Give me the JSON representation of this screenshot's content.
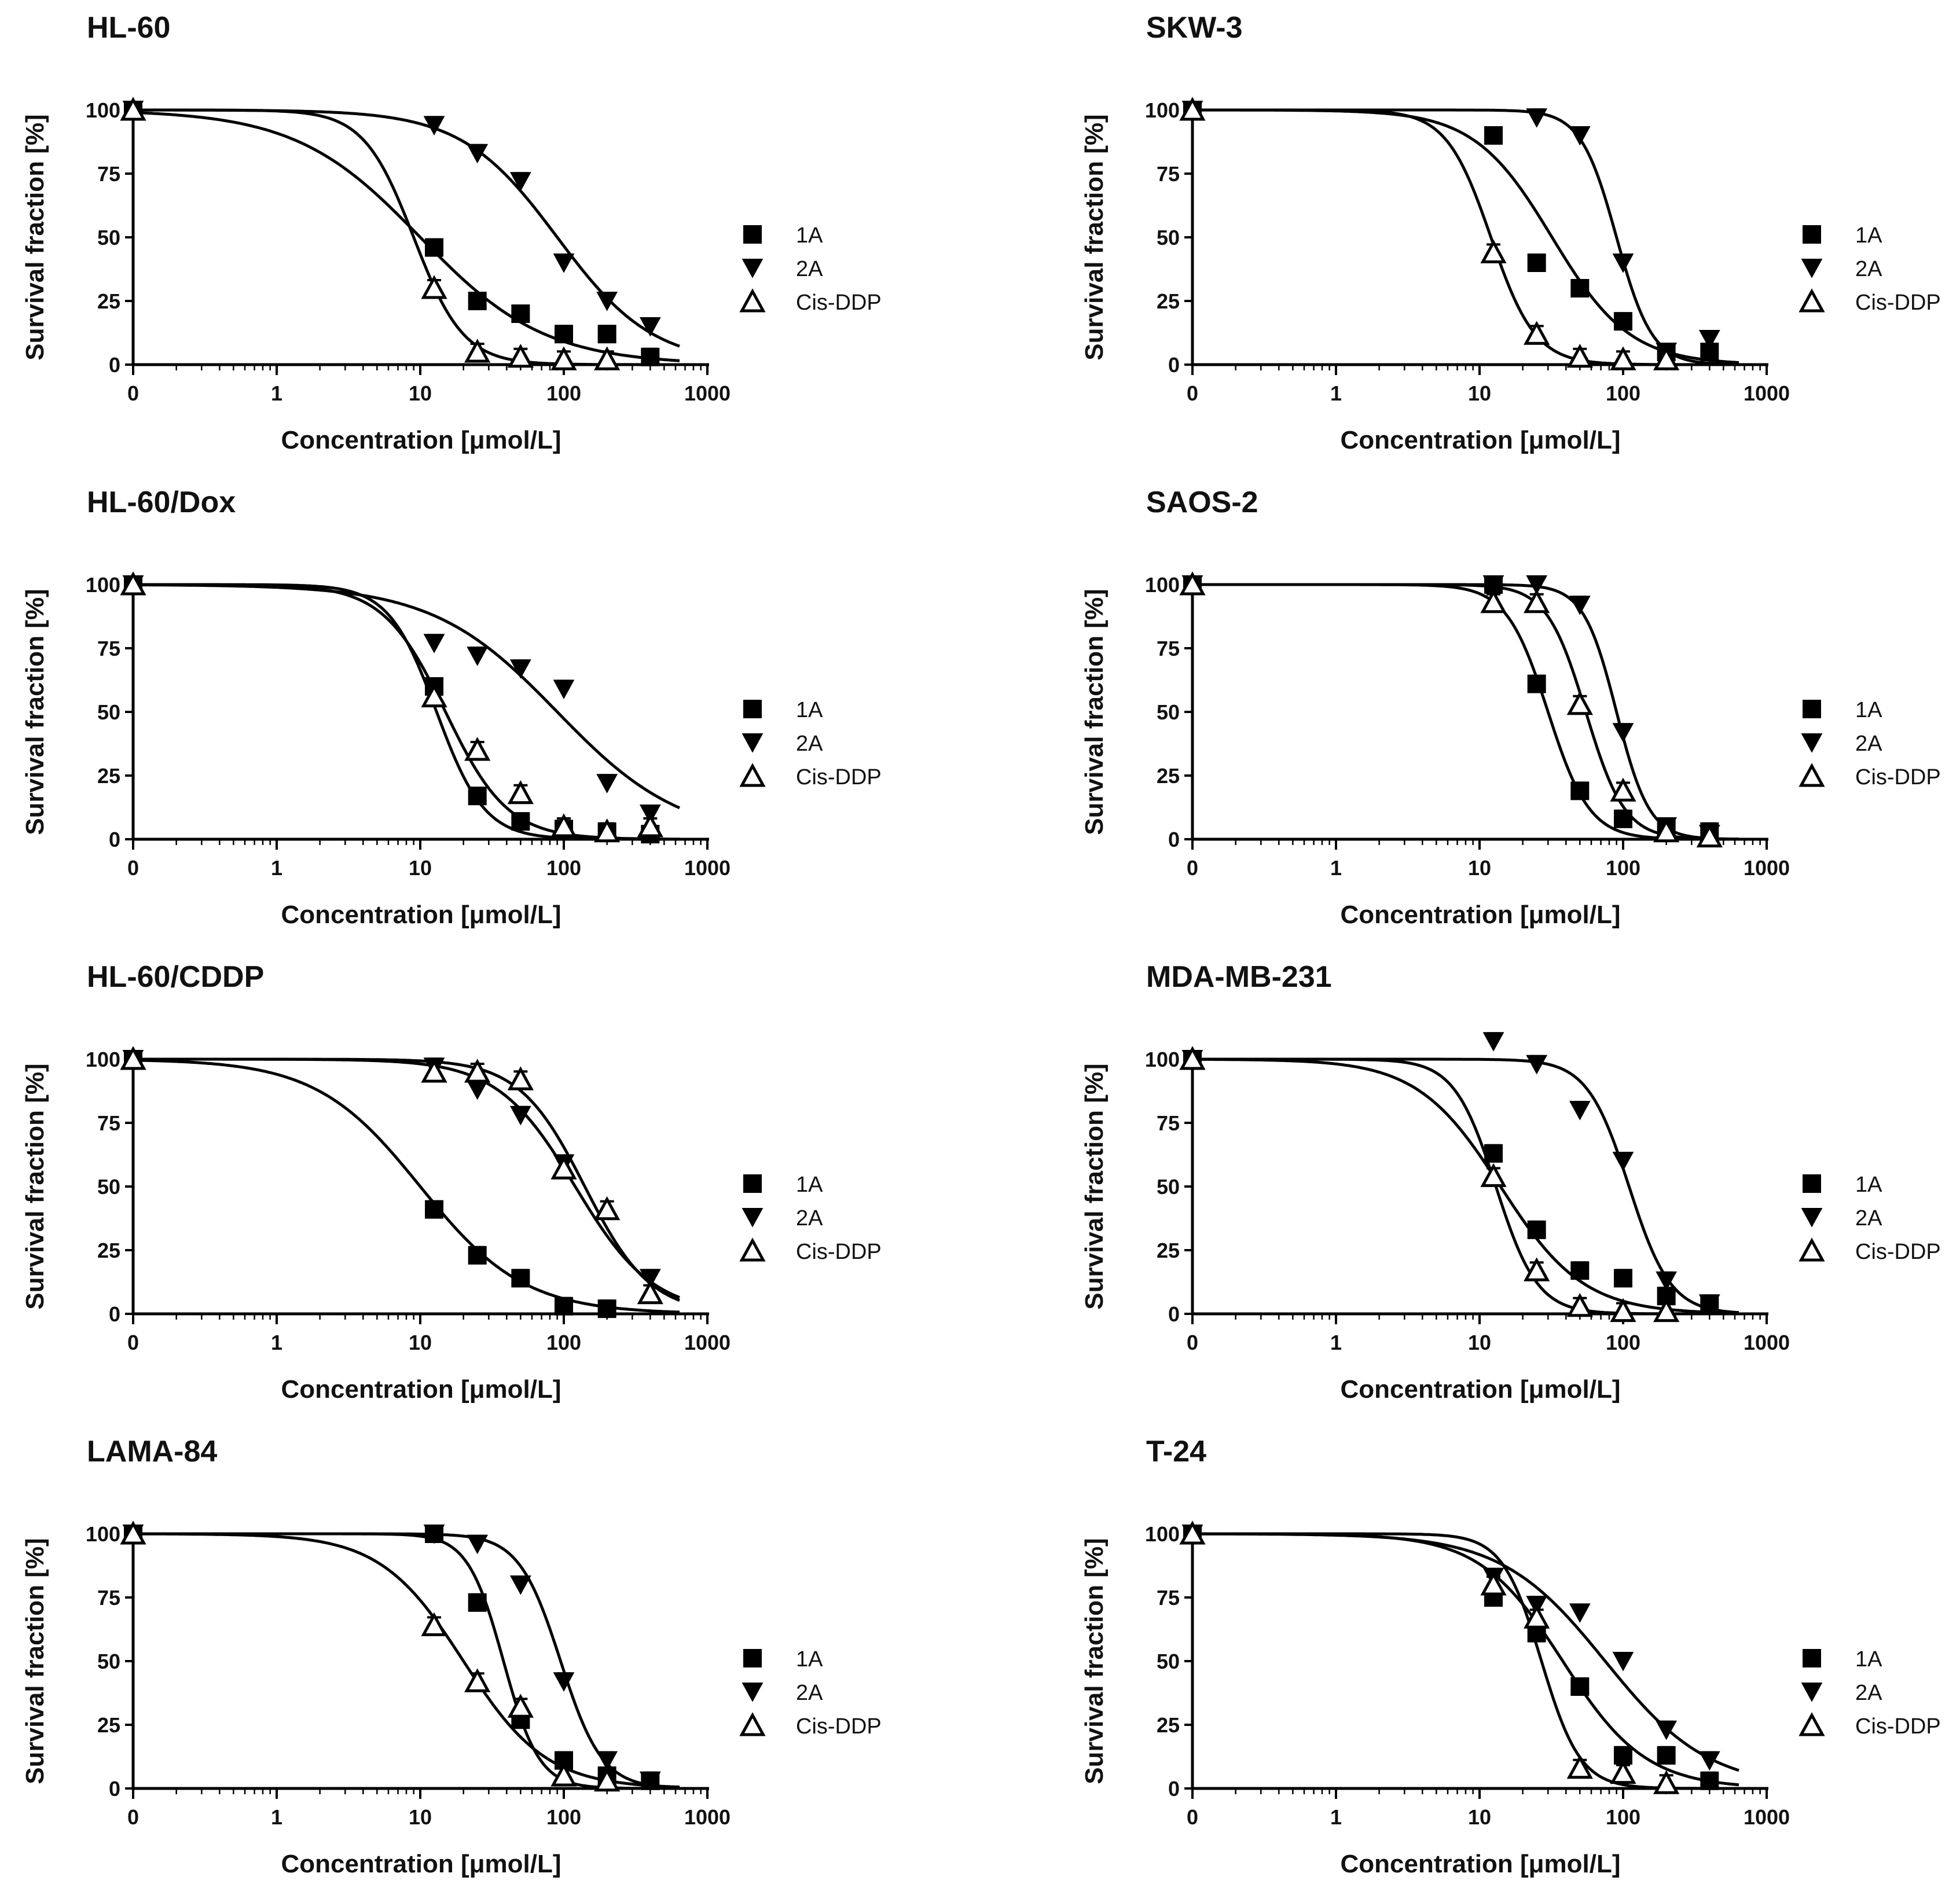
{
  "chart_data": [
    {
      "type": "line",
      "title": "HL-60",
      "xlabel": "Concentration [μmol/L]",
      "ylabel": "Survival fraction [%]",
      "x_ticks": [
        "0",
        "1",
        "10",
        "100",
        "1000"
      ],
      "y_ticks": [
        "0",
        "25",
        "50",
        "75",
        "100"
      ],
      "xscale": "log",
      "xlim": [
        0,
        1000
      ],
      "ylim": [
        0,
        100
      ],
      "legend": [
        "1A",
        "2A",
        "Cis-DDP"
      ],
      "series": [
        {
          "name": "1A",
          "marker": "square",
          "x": [
            0,
            12.5,
            25,
            50,
            100,
            200,
            400
          ],
          "y": [
            100,
            46,
            25,
            20,
            12,
            12,
            3
          ],
          "fit": {
            "ic50": 10,
            "hill": 1.0
          }
        },
        {
          "name": "2A",
          "marker": "triangle-down",
          "x": [
            0,
            12.5,
            25,
            50,
            100,
            200,
            400
          ],
          "y": [
            100,
            94,
            83,
            72,
            40,
            25,
            15
          ],
          "fit": {
            "ic50": 90,
            "hill": 1.3
          }
        },
        {
          "name": "Cis-DDP",
          "marker": "triangle-up-open",
          "x": [
            0,
            12.5,
            25,
            50,
            100,
            200
          ],
          "y": [
            100,
            30,
            5,
            3,
            2,
            2
          ],
          "fit": {
            "ic50": 9,
            "hill": 2.5
          }
        }
      ]
    },
    {
      "type": "line",
      "title": "SKW-3",
      "xlabel": "Concentration [μmol/L]",
      "ylabel": "Survival fraction [%]",
      "x_ticks": [
        "0",
        "1",
        "10",
        "100",
        "1000"
      ],
      "y_ticks": [
        "0",
        "25",
        "50",
        "75",
        "100"
      ],
      "xscale": "log",
      "xlim": [
        0,
        1000
      ],
      "ylim": [
        0,
        100
      ],
      "legend": [
        "1A",
        "2A",
        "Cis-DDP"
      ],
      "series": [
        {
          "name": "1A",
          "marker": "square",
          "x": [
            0,
            12.5,
            25,
            50,
            100,
            200,
            400
          ],
          "y": [
            100,
            90,
            40,
            30,
            17,
            5,
            5
          ],
          "fit": {
            "ic50": 32,
            "hill": 1.6
          }
        },
        {
          "name": "2A",
          "marker": "triangle-down",
          "x": [
            0,
            25,
            50,
            100,
            200,
            400
          ],
          "y": [
            100,
            97,
            90,
            40,
            5,
            10
          ],
          "fit": {
            "ic50": 90,
            "hill": 3.5
          }
        },
        {
          "name": "Cis-DDP",
          "marker": "triangle-up-open",
          "x": [
            0,
            12.5,
            25,
            50,
            100,
            200
          ],
          "y": [
            100,
            44,
            12,
            3,
            2,
            2
          ],
          "fit": {
            "ic50": 12,
            "hill": 2.8
          }
        }
      ]
    },
    {
      "type": "line",
      "title": "HL-60/Dox",
      "xlabel": "Concentration [μmol/L]",
      "ylabel": "Survival fraction [%]",
      "x_ticks": [
        "0",
        "1",
        "10",
        "100",
        "1000"
      ],
      "y_ticks": [
        "0",
        "25",
        "50",
        "75",
        "100"
      ],
      "xscale": "log",
      "xlim": [
        0,
        1000
      ],
      "ylim": [
        0,
        100
      ],
      "legend": [
        "1A",
        "2A",
        "Cis-DDP"
      ],
      "series": [
        {
          "name": "1A",
          "marker": "square",
          "x": [
            0,
            12.5,
            25,
            50,
            100,
            200,
            400
          ],
          "y": [
            100,
            60,
            17,
            7,
            4,
            3,
            2
          ],
          "fit": {
            "ic50": 13,
            "hill": 2.6
          }
        },
        {
          "name": "2A",
          "marker": "triangle-down",
          "x": [
            0,
            12.5,
            25,
            50,
            100,
            200,
            400
          ],
          "y": [
            100,
            77,
            72,
            67,
            59,
            22,
            10
          ],
          "fit": {
            "ic50": 90,
            "hill": 1.0
          }
        },
        {
          "name": "Cis-DDP",
          "marker": "triangle-up-open",
          "x": [
            0,
            12.5,
            25,
            50,
            100,
            200,
            400
          ],
          "y": [
            100,
            56,
            35,
            18,
            5,
            3,
            5
          ],
          "fit": {
            "ic50": 15,
            "hill": 2.0
          }
        }
      ]
    },
    {
      "type": "line",
      "title": "SAOS-2",
      "xlabel": "Concentration [μmol/L]",
      "ylabel": "Survival fraction [%]",
      "x_ticks": [
        "0",
        "1",
        "10",
        "100",
        "1000"
      ],
      "y_ticks": [
        "0",
        "25",
        "50",
        "75",
        "100"
      ],
      "xscale": "log",
      "xlim": [
        0,
        1000
      ],
      "ylim": [
        0,
        100
      ],
      "legend": [
        "1A",
        "2A",
        "Cis-DDP"
      ],
      "series": [
        {
          "name": "1A",
          "marker": "square",
          "x": [
            0,
            12.5,
            25,
            50,
            100,
            200,
            400
          ],
          "y": [
            100,
            100,
            61,
            19,
            8,
            4,
            3
          ],
          "fit": {
            "ic50": 30,
            "hill": 3.0
          }
        },
        {
          "name": "2A",
          "marker": "triangle-down",
          "x": [
            0,
            12.5,
            25,
            50,
            100,
            200,
            400
          ],
          "y": [
            100,
            100,
            100,
            92,
            42,
            5,
            2
          ],
          "fit": {
            "ic50": 90,
            "hill": 3.8
          }
        },
        {
          "name": "Cis-DDP",
          "marker": "triangle-up-open",
          "x": [
            0,
            12.5,
            25,
            50,
            100,
            200,
            400
          ],
          "y": [
            100,
            93,
            93,
            53,
            19,
            3,
            1
          ],
          "fit": {
            "ic50": 55,
            "hill": 3.2
          }
        }
      ]
    },
    {
      "type": "line",
      "title": "HL-60/CDDP",
      "xlabel": "Concentration [μmol/L]",
      "ylabel": "Survival fraction [%]",
      "x_ticks": [
        "0",
        "1",
        "10",
        "100",
        "1000"
      ],
      "y_ticks": [
        "0",
        "25",
        "50",
        "75",
        "100"
      ],
      "xscale": "log",
      "xlim": [
        0,
        1000
      ],
      "ylim": [
        0,
        100
      ],
      "legend": [
        "1A",
        "2A",
        "Cis-DDP"
      ],
      "series": [
        {
          "name": "1A",
          "marker": "square",
          "x": [
            0,
            12.5,
            25,
            50,
            100,
            200
          ],
          "y": [
            100,
            41,
            23,
            14,
            3,
            2
          ],
          "fit": {
            "ic50": 10,
            "hill": 1.2
          }
        },
        {
          "name": "2A",
          "marker": "triangle-down",
          "x": [
            0,
            12.5,
            25,
            50,
            100,
            400
          ],
          "y": [
            100,
            97,
            88,
            78,
            59,
            14
          ],
          "fit": {
            "ic50": 120,
            "hill": 1.6
          }
        },
        {
          "name": "Cis-DDP",
          "marker": "triangle-up-open",
          "x": [
            0,
            12.5,
            25,
            50,
            100,
            200,
            400
          ],
          "y": [
            100,
            95,
            95,
            92,
            57,
            41,
            8
          ],
          "fit": {
            "ic50": 140,
            "hill": 1.9
          }
        }
      ]
    },
    {
      "type": "line",
      "title": "MDA-MB-231",
      "xlabel": "Concentration [μmol/L]",
      "ylabel": "Survival fraction [%]",
      "x_ticks": [
        "0",
        "1",
        "10",
        "100",
        "1000"
      ],
      "y_ticks": [
        "0",
        "25",
        "50",
        "75",
        "100"
      ],
      "xscale": "log",
      "xlim": [
        0,
        1000
      ],
      "ylim": [
        0,
        100
      ],
      "legend": [
        "1A",
        "2A",
        "Cis-DDP"
      ],
      "series": [
        {
          "name": "1A",
          "marker": "square",
          "x": [
            0,
            12.5,
            25,
            50,
            100,
            200,
            400
          ],
          "y": [
            100,
            63,
            33,
            17,
            14,
            7,
            4
          ],
          "fit": {
            "ic50": 14,
            "hill": 1.5
          }
        },
        {
          "name": "2A",
          "marker": "triangle-down",
          "x": [
            0,
            12.5,
            25,
            50,
            100,
            200,
            400
          ],
          "y": [
            100,
            107,
            98,
            80,
            60,
            13,
            4
          ],
          "fit": {
            "ic50": 110,
            "hill": 3.0
          }
        },
        {
          "name": "Cis-DDP",
          "marker": "triangle-up-open",
          "x": [
            0,
            12.5,
            25,
            50,
            100,
            200
          ],
          "y": [
            100,
            54,
            17,
            3,
            1,
            1
          ],
          "fit": {
            "ic50": 13,
            "hill": 3.0
          }
        }
      ]
    },
    {
      "type": "line",
      "title": "LAMA-84",
      "xlabel": "Concentration [μmol/L]",
      "ylabel": "Survival fraction [%]",
      "x_ticks": [
        "0",
        "1",
        "10",
        "100",
        "1000"
      ],
      "y_ticks": [
        "0",
        "25",
        "50",
        "75",
        "100"
      ],
      "xscale": "log",
      "xlim": [
        0,
        1000
      ],
      "ylim": [
        0,
        100
      ],
      "legend": [
        "1A",
        "2A",
        "Cis-DDP"
      ],
      "series": [
        {
          "name": "1A",
          "marker": "square",
          "x": [
            0,
            12.5,
            25,
            50,
            100,
            200,
            400
          ],
          "y": [
            100,
            100,
            73,
            27,
            11,
            5,
            3
          ],
          "fit": {
            "ic50": 38,
            "hill": 3.5
          }
        },
        {
          "name": "2A",
          "marker": "triangle-down",
          "x": [
            0,
            12.5,
            25,
            50,
            100,
            200,
            400
          ],
          "y": [
            100,
            100,
            96,
            80,
            42,
            11,
            3
          ],
          "fit": {
            "ic50": 95,
            "hill": 3.0
          }
        },
        {
          "name": "Cis-DDP",
          "marker": "triangle-up-open",
          "x": [
            0,
            12.5,
            25,
            50,
            100,
            200
          ],
          "y": [
            100,
            64,
            42,
            32,
            5,
            3
          ],
          "fit": {
            "ic50": 20,
            "hill": 1.5
          }
        }
      ]
    },
    {
      "type": "line",
      "title": "T-24",
      "xlabel": "Concentration [μmol/L]",
      "ylabel": "Survival fraction [%]",
      "x_ticks": [
        "0",
        "1",
        "10",
        "100",
        "1000"
      ],
      "y_ticks": [
        "0",
        "25",
        "50",
        "75",
        "100"
      ],
      "xscale": "log",
      "xlim": [
        0,
        1000
      ],
      "ylim": [
        0,
        100
      ],
      "legend": [
        "1A",
        "2A",
        "Cis-DDP"
      ],
      "series": [
        {
          "name": "1A",
          "marker": "square",
          "x": [
            0,
            12.5,
            25,
            50,
            100,
            200,
            400
          ],
          "y": [
            100,
            75,
            61,
            40,
            13,
            13,
            3
          ],
          "fit": {
            "ic50": 38,
            "hill": 1.5
          }
        },
        {
          "name": "2A",
          "marker": "triangle-down",
          "x": [
            0,
            12.5,
            25,
            50,
            100,
            200,
            400
          ],
          "y": [
            100,
            83,
            72,
            69,
            50,
            23,
            11
          ],
          "fit": {
            "ic50": 75,
            "hill": 1.2
          }
        },
        {
          "name": "Cis-DDP",
          "marker": "triangle-up-open",
          "x": [
            0,
            12.5,
            25,
            50,
            100,
            200
          ],
          "y": [
            100,
            80,
            67,
            8,
            6,
            2
          ],
          "fit": {
            "ic50": 27,
            "hill": 3.2
          }
        }
      ]
    }
  ]
}
